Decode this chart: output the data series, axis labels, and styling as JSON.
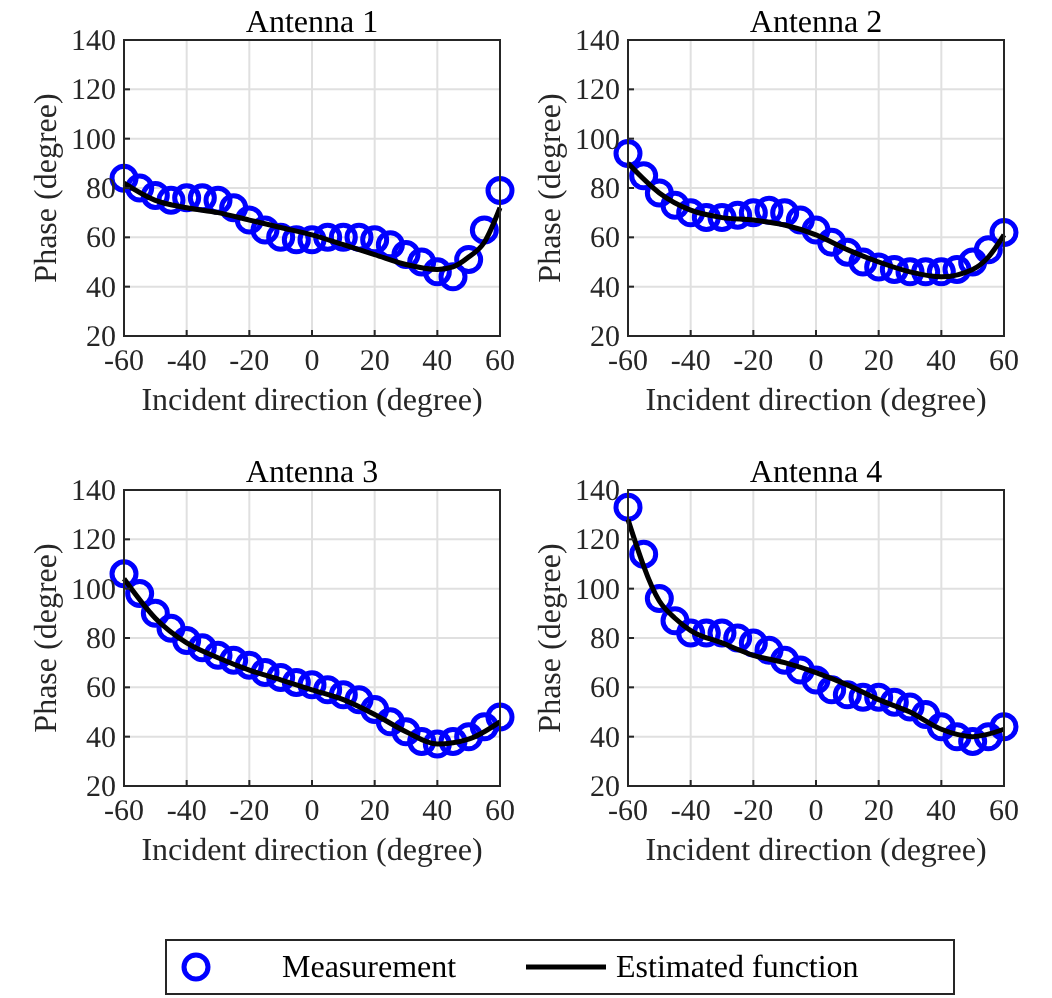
{
  "chart_data": [
    {
      "type": "scatter",
      "title": "Antenna 1",
      "xlabel": "Incident direction (degree)",
      "ylabel": "Phase (degree)",
      "xlim": [
        -60,
        60
      ],
      "xticks": [
        -60,
        -40,
        -20,
        0,
        20,
        40,
        60
      ],
      "ylim": [
        20,
        140
      ],
      "yticks": [
        20,
        40,
        60,
        80,
        100,
        120,
        140
      ],
      "grid": true,
      "legend": "bottom",
      "series": [
        {
          "name": "Measurement",
          "marker": "circle",
          "color": "#0000ff",
          "x": [
            -60,
            -55,
            -50,
            -45,
            -40,
            -35,
            -30,
            -25,
            -20,
            -15,
            -10,
            -5,
            0,
            5,
            10,
            15,
            20,
            25,
            30,
            35,
            40,
            45,
            50,
            55,
            60
          ],
          "values": [
            84,
            80,
            77,
            75,
            76,
            76,
            75,
            72,
            67,
            63,
            60,
            59,
            59,
            60,
            60,
            60,
            59,
            57,
            53,
            50,
            46,
            44,
            51,
            63,
            79
          ]
        },
        {
          "name": "Estimated function",
          "type": "line",
          "marker": "none",
          "line_style": "solid",
          "color": "#000000",
          "x": [
            -60,
            -50,
            -40,
            -30,
            -20,
            -10,
            0,
            10,
            20,
            30,
            40,
            45,
            50,
            55,
            60
          ],
          "values": [
            82,
            75,
            72,
            70,
            67,
            64,
            61,
            57,
            53,
            49,
            47,
            48,
            52,
            58,
            72
          ]
        }
      ]
    },
    {
      "type": "scatter",
      "title": "Antenna 2",
      "xlabel": "Incident direction (degree)",
      "ylabel": "Phase (degree)",
      "xlim": [
        -60,
        60
      ],
      "xticks": [
        -60,
        -40,
        -20,
        0,
        20,
        40,
        60
      ],
      "ylim": [
        20,
        140
      ],
      "yticks": [
        20,
        40,
        60,
        80,
        100,
        120,
        140
      ],
      "grid": true,
      "series": [
        {
          "marker": "circle",
          "color": "#0000ff",
          "x": [
            -60,
            -55,
            -50,
            -45,
            -40,
            -35,
            -30,
            -25,
            -20,
            -15,
            -10,
            -5,
            0,
            5,
            10,
            15,
            20,
            25,
            30,
            35,
            40,
            45,
            50,
            55,
            60
          ],
          "values": [
            94,
            85,
            78,
            73,
            70,
            68,
            68,
            69,
            70,
            71,
            70,
            67,
            63,
            58,
            54,
            50,
            48,
            47,
            46,
            46,
            46,
            47,
            50,
            55,
            62
          ]
        },
        {
          "type": "line",
          "marker": "none",
          "line_style": "solid",
          "color": "#000000",
          "x": [
            -60,
            -50,
            -40,
            -30,
            -20,
            -10,
            0,
            10,
            20,
            30,
            40,
            50,
            55,
            60
          ],
          "values": [
            90,
            78,
            71,
            68,
            67,
            65,
            61,
            55,
            50,
            46,
            44,
            47,
            52,
            61
          ]
        }
      ]
    },
    {
      "type": "scatter",
      "title": "Antenna 3",
      "xlabel": "Incident direction (degree)",
      "ylabel": "Phase (degree)",
      "xlim": [
        -60,
        60
      ],
      "xticks": [
        -60,
        -40,
        -20,
        0,
        20,
        40,
        60
      ],
      "ylim": [
        20,
        140
      ],
      "yticks": [
        20,
        40,
        60,
        80,
        100,
        120,
        140
      ],
      "grid": true,
      "series": [
        {
          "marker": "circle",
          "color": "#0000ff",
          "x": [
            -60,
            -55,
            -50,
            -45,
            -40,
            -35,
            -30,
            -25,
            -20,
            -15,
            -10,
            -5,
            0,
            5,
            10,
            15,
            20,
            25,
            30,
            35,
            40,
            45,
            50,
            55,
            60
          ],
          "values": [
            106,
            98,
            90,
            84,
            79,
            76,
            73,
            71,
            69,
            66,
            64,
            62,
            61,
            59,
            57,
            55,
            51,
            46,
            42,
            38,
            37,
            38,
            40,
            44,
            48
          ]
        },
        {
          "type": "line",
          "marker": "none",
          "line_style": "solid",
          "color": "#000000",
          "x": [
            -60,
            -50,
            -40,
            -30,
            -20,
            -10,
            0,
            10,
            20,
            30,
            40,
            50,
            60
          ],
          "values": [
            104,
            88,
            78,
            72,
            67,
            63,
            59,
            55,
            49,
            42,
            37,
            39,
            46
          ]
        }
      ]
    },
    {
      "type": "scatter",
      "title": "Antenna 4",
      "xlabel": "Incident direction (degree)",
      "ylabel": "Phase (degree)",
      "xlim": [
        -60,
        60
      ],
      "xticks": [
        -60,
        -40,
        -20,
        0,
        20,
        40,
        60
      ],
      "ylim": [
        20,
        140
      ],
      "yticks": [
        20,
        40,
        60,
        80,
        100,
        120,
        140
      ],
      "grid": true,
      "series": [
        {
          "marker": "circle",
          "color": "#0000ff",
          "x": [
            -60,
            -55,
            -50,
            -45,
            -40,
            -35,
            -30,
            -25,
            -20,
            -15,
            -10,
            -5,
            0,
            5,
            10,
            15,
            20,
            25,
            30,
            35,
            40,
            45,
            50,
            55,
            60
          ],
          "values": [
            133,
            114,
            96,
            87,
            82,
            82,
            82,
            80,
            78,
            75,
            71,
            67,
            63,
            59,
            57,
            56,
            56,
            54,
            52,
            49,
            44,
            40,
            38,
            40,
            44
          ]
        },
        {
          "type": "line",
          "marker": "none",
          "line_style": "solid",
          "color": "#000000",
          "x": [
            -60,
            -50,
            -45,
            -40,
            -30,
            -20,
            -10,
            0,
            10,
            20,
            30,
            40,
            50,
            60
          ],
          "values": [
            128,
            95,
            88,
            83,
            78,
            73,
            70,
            66,
            61,
            55,
            50,
            43,
            40,
            43
          ]
        }
      ]
    }
  ]
}
